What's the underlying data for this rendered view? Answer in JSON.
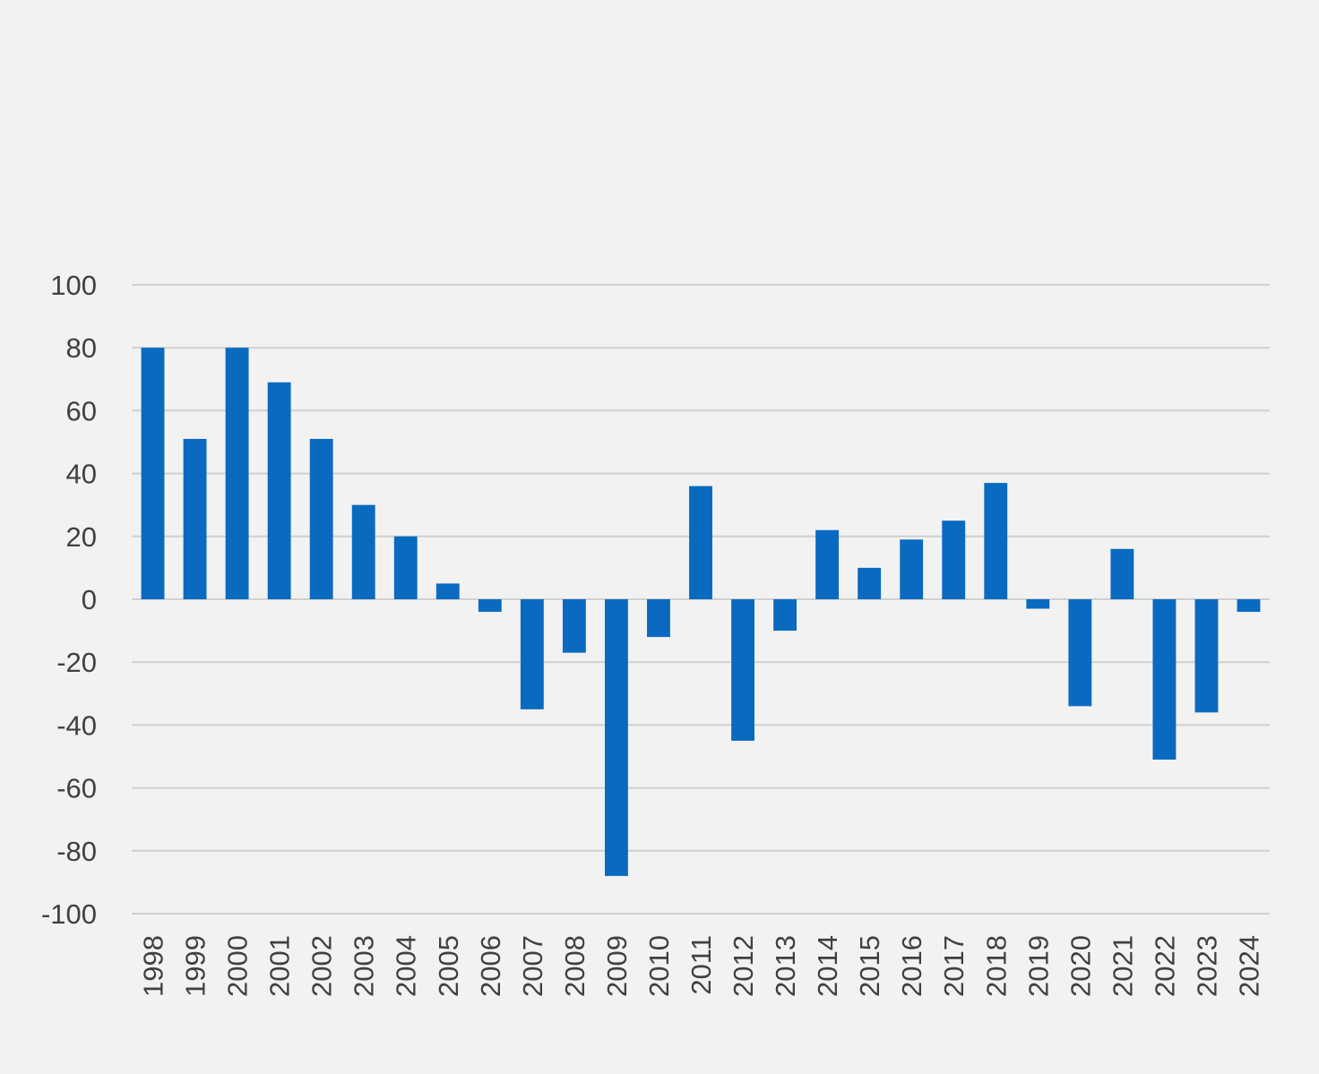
{
  "chart_data": {
    "type": "bar",
    "title": "",
    "xlabel": "",
    "ylabel": "",
    "categories": [
      "1998",
      "1999",
      "2000",
      "2001",
      "2002",
      "2003",
      "2004",
      "2005",
      "2006",
      "2007",
      "2008",
      "2009",
      "2010",
      "2011",
      "2012",
      "2013",
      "2014",
      "2015",
      "2016",
      "2017",
      "2018",
      "2019",
      "2020",
      "2021",
      "2022",
      "2023",
      "2024"
    ],
    "values": [
      80,
      51,
      80,
      69,
      51,
      30,
      20,
      5,
      -4,
      -35,
      -17,
      -88,
      -12,
      36,
      -45,
      -10,
      22,
      10,
      19,
      25,
      37,
      -3,
      -34,
      16,
      -51,
      -36,
      -4
    ],
    "ylim": [
      -100,
      100
    ],
    "yticks": [
      100,
      80,
      60,
      40,
      20,
      0,
      -20,
      -40,
      -60,
      -80,
      -100
    ],
    "grid": true,
    "legend": "none",
    "bar_color": "#0a6ac0",
    "gridline_color": "#d0d0d0",
    "background_color": "#f2f2f2"
  }
}
